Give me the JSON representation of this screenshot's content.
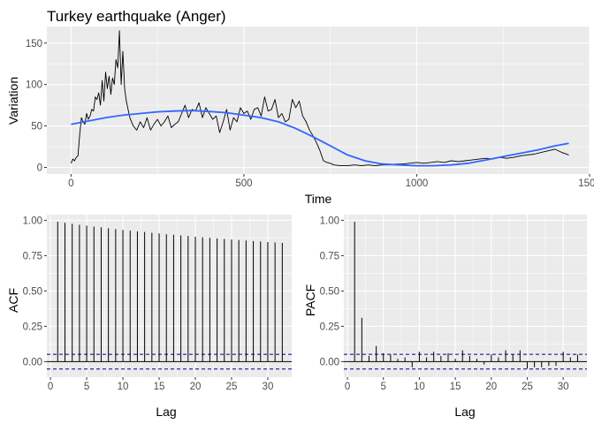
{
  "chart_data": [
    {
      "id": "ts",
      "type": "line",
      "title": "Turkey earthquake (Anger)",
      "xlabel": "Time",
      "ylabel": "Variation",
      "xlim": [
        -70,
        1500
      ],
      "ylim": [
        -8,
        170
      ],
      "x_ticks": [
        0,
        500,
        1000,
        1500
      ],
      "y_ticks": [
        0,
        50,
        100,
        150
      ],
      "grid": true,
      "series": [
        {
          "color": "#000000",
          "x": [
            0,
            5,
            10,
            15,
            20,
            25,
            30,
            35,
            40,
            45,
            50,
            55,
            60,
            65,
            70,
            75,
            80,
            85,
            90,
            95,
            100,
            105,
            110,
            115,
            120,
            125,
            130,
            135,
            140,
            145,
            150,
            155,
            160,
            165,
            170,
            175,
            180,
            190,
            200,
            210,
            220,
            230,
            240,
            250,
            260,
            270,
            280,
            290,
            300,
            310,
            320,
            330,
            340,
            350,
            360,
            370,
            380,
            390,
            400,
            410,
            420,
            430,
            440,
            450,
            460,
            470,
            480,
            490,
            500,
            510,
            520,
            530,
            540,
            550,
            560,
            570,
            580,
            590,
            600,
            610,
            620,
            630,
            640,
            650,
            660,
            670,
            680,
            690,
            700,
            710,
            720,
            730,
            740,
            750,
            760,
            780,
            800,
            820,
            840,
            860,
            880,
            900,
            920,
            940,
            960,
            980,
            1000,
            1020,
            1040,
            1060,
            1080,
            1100,
            1120,
            1140,
            1160,
            1180,
            1200,
            1220,
            1240,
            1260,
            1280,
            1300,
            1320,
            1340,
            1360,
            1380,
            1400,
            1420,
            1440
          ],
          "y": [
            5,
            10,
            8,
            12,
            14,
            40,
            60,
            55,
            52,
            65,
            58,
            62,
            70,
            68,
            85,
            82,
            90,
            75,
            105,
            80,
            115,
            95,
            110,
            88,
            108,
            100,
            130,
            120,
            165,
            100,
            140,
            95,
            80,
            70,
            60,
            55,
            50,
            45,
            55,
            48,
            60,
            45,
            52,
            58,
            50,
            55,
            62,
            48,
            52,
            55,
            65,
            75,
            60,
            70,
            68,
            78,
            60,
            72,
            65,
            58,
            62,
            42,
            55,
            70,
            45,
            60,
            55,
            72,
            65,
            68,
            58,
            70,
            72,
            62,
            85,
            68,
            70,
            82,
            60,
            65,
            55,
            58,
            82,
            72,
            80,
            62,
            55,
            45,
            38,
            30,
            20,
            8,
            6,
            5,
            3,
            2,
            2,
            3,
            2,
            3,
            2,
            3,
            3,
            4,
            4,
            5,
            6,
            5,
            6,
            7,
            6,
            8,
            7,
            8,
            9,
            10,
            11,
            10,
            12,
            11,
            12,
            14,
            15,
            16,
            18,
            20,
            22,
            18,
            15
          ]
        },
        {
          "color": "#3366ff",
          "x": [
            0,
            50,
            100,
            150,
            200,
            250,
            300,
            350,
            400,
            450,
            500,
            550,
            600,
            650,
            700,
            750,
            800,
            850,
            900,
            950,
            1000,
            1050,
            1100,
            1150,
            1200,
            1250,
            1300,
            1350,
            1400,
            1440
          ],
          "y": [
            52,
            56,
            60,
            63,
            65,
            67,
            68,
            68.5,
            67.5,
            66,
            63,
            60,
            55,
            47,
            37,
            26,
            15,
            8,
            4,
            3,
            2,
            2,
            3,
            5,
            9,
            13,
            17,
            21,
            26,
            29
          ]
        }
      ]
    },
    {
      "id": "acf",
      "type": "bar",
      "xlabel": "Lag",
      "ylabel": "ACF",
      "xlim": [
        -0.5,
        33.3
      ],
      "ylim": [
        -0.11,
        1.04
      ],
      "x_ticks": [
        0,
        5,
        10,
        15,
        20,
        25,
        30
      ],
      "y_ticks": [
        0.0,
        0.25,
        0.5,
        0.75,
        1.0
      ],
      "y_tick_labels": [
        "0.00",
        "0.25",
        "0.50",
        "0.75",
        "1.00"
      ],
      "grid": true,
      "ci": 0.052,
      "ci_color": "#00008b",
      "lags": [
        1,
        2,
        3,
        4,
        5,
        6,
        7,
        8,
        9,
        10,
        11,
        12,
        13,
        14,
        15,
        16,
        17,
        18,
        19,
        20,
        21,
        22,
        23,
        24,
        25,
        26,
        27,
        28,
        29,
        30,
        31,
        32
      ],
      "values": [
        0.99,
        0.982,
        0.975,
        0.968,
        0.962,
        0.956,
        0.95,
        0.944,
        0.938,
        0.932,
        0.927,
        0.922,
        0.917,
        0.912,
        0.907,
        0.902,
        0.898,
        0.893,
        0.889,
        0.884,
        0.88,
        0.876,
        0.872,
        0.868,
        0.864,
        0.86,
        0.857,
        0.853,
        0.85,
        0.846,
        0.843,
        0.84
      ]
    },
    {
      "id": "pacf",
      "type": "bar",
      "xlabel": "Lag",
      "ylabel": "PACF",
      "xlim": [
        -0.5,
        33.3
      ],
      "ylim": [
        -0.11,
        1.04
      ],
      "x_ticks": [
        0,
        5,
        10,
        15,
        20,
        25,
        30
      ],
      "y_ticks": [
        0.0,
        0.25,
        0.5,
        0.75,
        1.0
      ],
      "y_tick_labels": [
        "0.00",
        "0.25",
        "0.50",
        "0.75",
        "1.00"
      ],
      "grid": true,
      "ci": 0.052,
      "ci_color": "#00008b",
      "lags": [
        1,
        2,
        3,
        4,
        5,
        6,
        7,
        8,
        9,
        10,
        11,
        12,
        13,
        14,
        15,
        16,
        17,
        18,
        19,
        20,
        21,
        22,
        23,
        24,
        25,
        26,
        27,
        28,
        29,
        30,
        31,
        32
      ],
      "values": [
        0.99,
        0.31,
        0.04,
        0.11,
        0.06,
        0.05,
        0.02,
        0.03,
        -0.04,
        0.07,
        0.03,
        0.07,
        0.04,
        0.06,
        0.02,
        0.08,
        0.04,
        0.02,
        -0.02,
        0.05,
        0.03,
        0.08,
        0.05,
        0.08,
        -0.05,
        -0.04,
        -0.04,
        -0.03,
        -0.03,
        0.07,
        0.03,
        0.05
      ]
    }
  ]
}
